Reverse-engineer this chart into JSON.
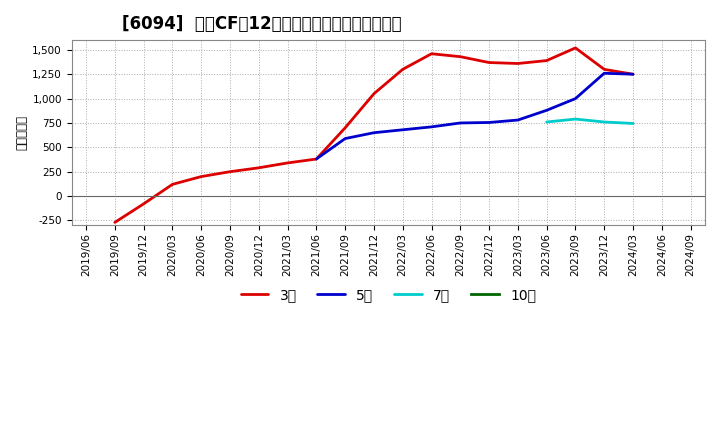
{
  "title": "[6094]  営業CFの12か月移動合計の平均値の推移",
  "ylabel": "（百万円）",
  "ylim": [
    -300,
    1600
  ],
  "yticks": [
    -250,
    0,
    250,
    500,
    750,
    1000,
    1250,
    1500
  ],
  "background_color": "#ffffff",
  "plot_bg_color": "#ffffff",
  "grid_color": "#aaaaaa",
  "series": {
    "3年": {
      "color": "#dd0000",
      "x": [
        "2019/09",
        "2019/12",
        "2020/03",
        "2020/06",
        "2020/09",
        "2020/12",
        "2021/03",
        "2021/06",
        "2021/09",
        "2021/12",
        "2022/03",
        "2022/06",
        "2022/09",
        "2022/12",
        "2023/03",
        "2023/06",
        "2023/09",
        "2023/12",
        "2024/03"
      ],
      "y": [
        -270,
        -80,
        120,
        200,
        250,
        290,
        340,
        380,
        700,
        1050,
        1300,
        1460,
        1430,
        1370,
        1360,
        1390,
        1520,
        1300,
        1250
      ]
    },
    "5年": {
      "color": "#0000cc",
      "x": [
        "2021/06",
        "2021/09",
        "2021/12",
        "2022/03",
        "2022/06",
        "2022/09",
        "2022/12",
        "2023/03",
        "2023/06",
        "2023/09",
        "2023/12",
        "2024/03"
      ],
      "y": [
        380,
        590,
        650,
        680,
        710,
        750,
        755,
        780,
        880,
        1000,
        1260,
        1250
      ]
    },
    "7年": {
      "color": "#00cccc",
      "x": [
        "2023/06",
        "2023/09",
        "2023/12",
        "2024/03"
      ],
      "y": [
        760,
        790,
        760,
        745
      ]
    },
    "10年": {
      "color": "#006600",
      "x": [],
      "y": []
    }
  },
  "xticks": [
    "2019/06",
    "2019/09",
    "2019/12",
    "2020/03",
    "2020/06",
    "2020/09",
    "2020/12",
    "2021/03",
    "2021/06",
    "2021/09",
    "2021/12",
    "2022/03",
    "2022/06",
    "2022/09",
    "2022/12",
    "2023/03",
    "2023/06",
    "2023/09",
    "2023/12",
    "2024/03",
    "2024/06",
    "2024/09"
  ],
  "legend_order": [
    "3年",
    "5年",
    "7年",
    "10年"
  ],
  "title_fontsize": 12,
  "tick_fontsize": 7.5,
  "ylabel_fontsize": 8.5,
  "legend_fontsize": 10,
  "linewidth": 2.0
}
